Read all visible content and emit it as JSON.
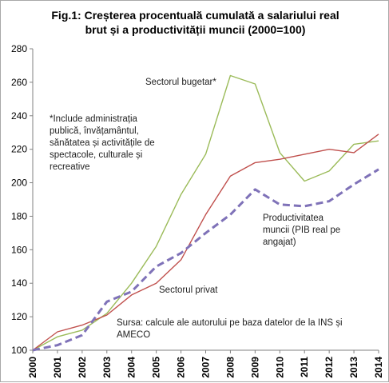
{
  "chart_data": {
    "type": "line",
    "title_line1": "Fig.1: Creșterea procentuală cumulată a salariului real",
    "title_line2": "brut și a productivității muncii (2000=100)",
    "xlabel": "",
    "ylabel": "",
    "ylim": [
      100,
      280
    ],
    "yticks": [
      100,
      120,
      140,
      160,
      180,
      200,
      220,
      240,
      260,
      280
    ],
    "x": [
      2000,
      2001,
      2002,
      2003,
      2004,
      2005,
      2006,
      2007,
      2008,
      2009,
      2010,
      2011,
      2012,
      2013,
      2014
    ],
    "grid": false,
    "series": [
      {
        "name": "Sectorul bugetar*",
        "color": "#9bbb59",
        "dash": "solid",
        "values": [
          100,
          108,
          112,
          122,
          140,
          162,
          193,
          217,
          264,
          259,
          218,
          201,
          207,
          223,
          225
        ]
      },
      {
        "name": "Sectorul privat",
        "color": "#c0504d",
        "dash": "solid",
        "values": [
          100,
          111,
          115,
          121,
          133,
          140,
          154,
          181,
          204,
          212,
          214,
          217,
          220,
          218,
          229
        ]
      },
      {
        "name": "Productivitatea muncii (PIB real pe angajat)",
        "color": "#7f72b8",
        "dash": "dashed",
        "values": [
          100,
          103,
          109,
          129,
          135,
          150,
          158,
          170,
          181,
          196,
          187,
          186,
          189,
          199,
          208
        ]
      }
    ],
    "annotations": {
      "bugetar": "Sectorul bugetar*",
      "privat": "Sectorul privat",
      "productivitate_1": "Productivitatea",
      "productivitate_2": "muncii (PIB real pe",
      "productivitate_3": "angajat)",
      "note_1": "*Include administrația",
      "note_2": "publică, învățamântul,",
      "note_3": "sănătatea și activitățile de",
      "note_4": "spectacole, culturale și",
      "note_5": "recreative",
      "source_1": "Sursa: calcule ale autorului  pe baza datelor de la INS și",
      "source_2": "AMECO"
    }
  }
}
